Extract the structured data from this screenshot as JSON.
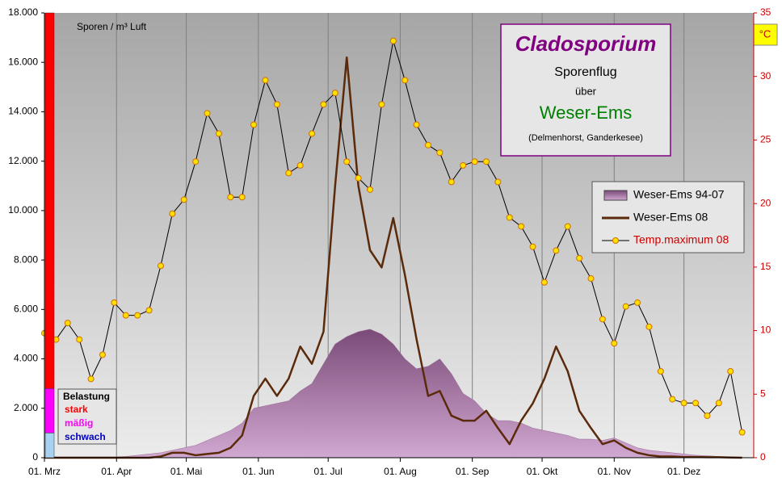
{
  "chart_data": {
    "type": "combo",
    "title": "Cladosporium",
    "subtitle": "Sporenflug",
    "subtitle2": "über",
    "region": "Weser-Ems",
    "locations": "(Delmenhorst, Ganderkesee)",
    "y_label": "Sporen / m³ Luft",
    "y2_label": "°C",
    "x": [
      0,
      5,
      10,
      15,
      20,
      25,
      30,
      35,
      40,
      45,
      50,
      55,
      60,
      65,
      70,
      75,
      80,
      85,
      90,
      95,
      100,
      105,
      110,
      115,
      120,
      125,
      130,
      135,
      140,
      145,
      150,
      155,
      160,
      165,
      170,
      175,
      180,
      185,
      190,
      195,
      200,
      205,
      210,
      215,
      220,
      225,
      230,
      235,
      240,
      245,
      250,
      255,
      260,
      265,
      270,
      275,
      280,
      285,
      290,
      295,
      300
    ],
    "xlim": [
      0,
      305
    ],
    "xticks": [
      {
        "value": 0,
        "label": "01. Mrz"
      },
      {
        "value": 31,
        "label": "01. Apr"
      },
      {
        "value": 61,
        "label": "01. Mai"
      },
      {
        "value": 92,
        "label": "01. Jun"
      },
      {
        "value": 122,
        "label": "01. Jul"
      },
      {
        "value": 153,
        "label": "01. Aug"
      },
      {
        "value": 184,
        "label": "01. Sep"
      },
      {
        "value": 214,
        "label": "01. Okt"
      },
      {
        "value": 245,
        "label": "01. Nov"
      },
      {
        "value": 275,
        "label": "01. Dez"
      }
    ],
    "ylim": [
      0,
      18000
    ],
    "yticks": [
      0,
      {
        "value": 2000,
        "label": "2.000"
      },
      {
        "value": 4000,
        "label": "4.000"
      },
      {
        "value": 6000,
        "label": "6.000"
      },
      {
        "value": 8000,
        "label": "8.000"
      },
      {
        "value": 10000,
        "label": "10.000"
      },
      {
        "value": 12000,
        "label": "12.000"
      },
      {
        "value": 14000,
        "label": "14.000"
      },
      {
        "value": 16000,
        "label": "16.000"
      },
      {
        "value": 18000,
        "label": "18.000"
      }
    ],
    "y2lim": [
      0,
      35
    ],
    "y2ticks": [
      0,
      5,
      10,
      15,
      20,
      25,
      30,
      35
    ],
    "grid": "x",
    "series": [
      {
        "name": "Weser-Ems 94-07",
        "kind": "area",
        "color": "#9a6a98",
        "values": [
          30,
          30,
          30,
          30,
          30,
          30,
          30,
          50,
          100,
          150,
          200,
          300,
          400,
          500,
          700,
          900,
          1100,
          1400,
          2000,
          2100,
          2200,
          2300,
          2700,
          3000,
          3800,
          4600,
          4900,
          5100,
          5200,
          5000,
          4600,
          4000,
          3600,
          3700,
          4000,
          3400,
          2600,
          2300,
          1800,
          1500,
          1500,
          1400,
          1200,
          1100,
          1000,
          900,
          750,
          750,
          700,
          800,
          600,
          400,
          300,
          250,
          200,
          150,
          100,
          80,
          50,
          30,
          20
        ]
      },
      {
        "name": "Weser-Ems 08",
        "kind": "line",
        "color": "#5a2a0a",
        "values": [
          0,
          0,
          0,
          0,
          0,
          0,
          0,
          0,
          0,
          0,
          50,
          200,
          200,
          100,
          150,
          200,
          400,
          900,
          2500,
          3200,
          2500,
          3200,
          4500,
          3800,
          5100,
          11000,
          16200,
          11000,
          8400,
          7700,
          9700,
          7400,
          4800,
          2500,
          2700,
          1700,
          1500,
          1500,
          1900,
          1200,
          550,
          1500,
          2200,
          3200,
          4500,
          3500,
          1900,
          1200,
          550,
          700,
          400,
          200,
          100,
          50,
          50,
          30,
          30,
          20,
          20,
          10,
          0
        ]
      },
      {
        "name": "Temp.maximum 08",
        "kind": "dots",
        "axis": "y2",
        "color": "#ffe000",
        "values": [
          9.8,
          9.3,
          10.6,
          9.3,
          6.2,
          8.1,
          12.2,
          11.2,
          11.2,
          11.6,
          15.1,
          19.2,
          20.3,
          23.3,
          27.1,
          25.5,
          20.5,
          20.5,
          26.2,
          29.7,
          27.8,
          22.4,
          23.0,
          25.5,
          27.8,
          28.7,
          23.3,
          22.0,
          21.1,
          27.8,
          32.8,
          29.7,
          26.2,
          24.6,
          24.0,
          21.7,
          23.0,
          23.3,
          23.3,
          21.7,
          18.9,
          18.2,
          16.6,
          13.8,
          16.3,
          18.2,
          15.7,
          14.1,
          10.9,
          9.0,
          11.9,
          12.2,
          10.3,
          6.8,
          4.6,
          4.3,
          4.3,
          3.3,
          4.3,
          6.8,
          2.0
        ]
      }
    ],
    "load_title": "Belastung",
    "load_bands": [
      {
        "label": "stark",
        "from": 2800,
        "to": 18000,
        "color": "#ff0000",
        "text_color": "#ff0000"
      },
      {
        "label": "mäßig",
        "from": 1000,
        "to": 2800,
        "color": "#ff00ff",
        "text_color": "#ff00ff"
      },
      {
        "label": "schwach",
        "from": 0,
        "to": 1000,
        "color": "#a8d0f0",
        "text_color": "#0000c0"
      }
    ]
  }
}
